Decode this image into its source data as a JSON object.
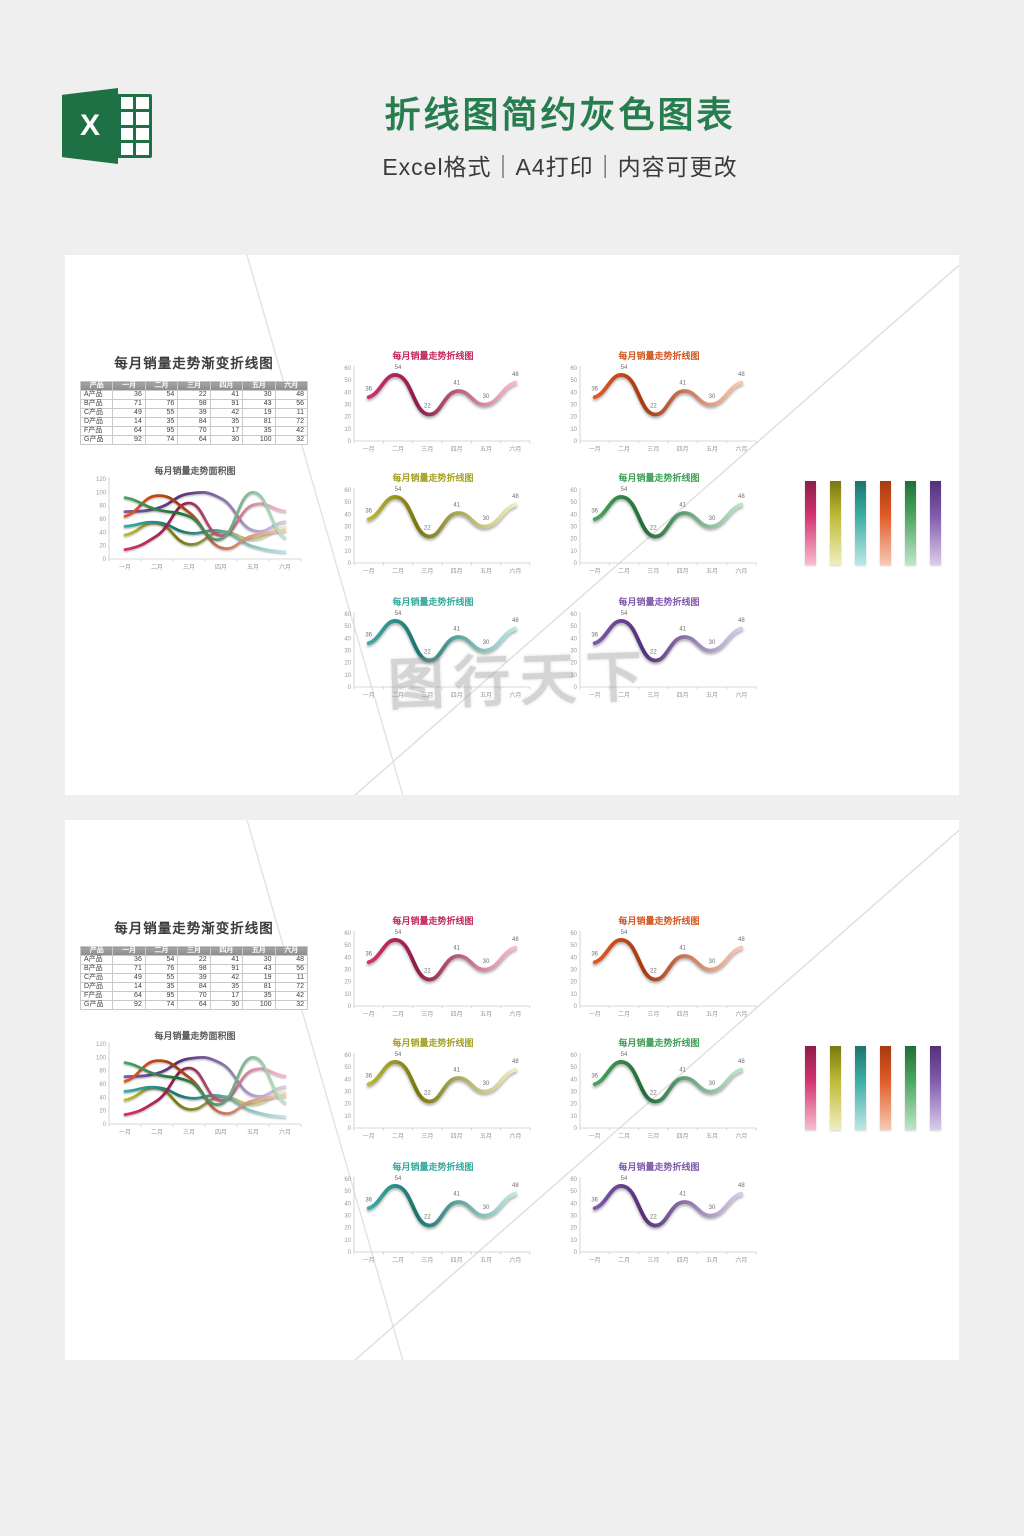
{
  "page": {
    "background": "#efeff0"
  },
  "header": {
    "title": "折线图简约灰色图表",
    "subtitle": "Excel格式｜A4打印｜内容可更改",
    "title_color": "#287d4e",
    "icon": {
      "name": "excel-icon",
      "letter": "X",
      "color": "#1e7145"
    }
  },
  "watermark": {
    "text": "图行天下"
  },
  "palette": {
    "pink": {
      "dark": "#8e1d4a",
      "mid": "#d2326e",
      "light": "#f7bcd1",
      "title": "#c2255c"
    },
    "orange": {
      "dark": "#a63a10",
      "mid": "#e05a26",
      "light": "#f8c9b4",
      "title": "#d0541e"
    },
    "olive": {
      "dark": "#79770f",
      "mid": "#bdb934",
      "light": "#efeec0",
      "title": "#a3a024"
    },
    "green": {
      "dark": "#1f6e38",
      "mid": "#4aa55e",
      "light": "#bfe5c9",
      "title": "#3e9c54"
    },
    "teal": {
      "dark": "#1c746e",
      "mid": "#3aada5",
      "light": "#bce8e5",
      "title": "#35a79c"
    },
    "purple": {
      "dark": "#533179",
      "mid": "#8059ab",
      "light": "#d9cdeb",
      "title": "#7e57a8"
    }
  },
  "sheet": {
    "table_title": "每月销量走势渐变折线图",
    "table": {
      "header": [
        "产品",
        "一月",
        "二月",
        "三月",
        "四月",
        "五月",
        "六月"
      ],
      "rows": [
        [
          "A产品",
          36,
          54,
          22,
          41,
          30,
          48
        ],
        [
          "B产品",
          71,
          76,
          98,
          91,
          43,
          56
        ],
        [
          "C产品",
          49,
          55,
          39,
          42,
          19,
          11
        ],
        [
          "D产品",
          14,
          35,
          84,
          35,
          81,
          72
        ],
        [
          "F产品",
          64,
          95,
          70,
          17,
          35,
          42
        ],
        [
          "G产品",
          92,
          74,
          64,
          30,
          100,
          32
        ]
      ]
    },
    "line_chart_order": [
      "pink",
      "orange",
      "olive",
      "green",
      "teal",
      "purple"
    ],
    "color_bar_order": [
      "pink",
      "olive",
      "teal",
      "orange",
      "green",
      "purple"
    ]
  },
  "chart_data": [
    {
      "type": "line",
      "title": "每月销量走势折线图",
      "categories": [
        "一月",
        "二月",
        "三月",
        "四月",
        "五月",
        "六月"
      ],
      "values": [
        36,
        54,
        22,
        41,
        30,
        48
      ],
      "series_name": "A产品",
      "ylim": [
        0,
        60
      ],
      "yticks": [
        0,
        10,
        20,
        30,
        40,
        50,
        60
      ],
      "data_labels": true,
      "grid": false,
      "legend": "none",
      "color_variants": [
        "pink",
        "orange",
        "olive",
        "green",
        "teal",
        "purple"
      ],
      "instances_per_sheet": 6
    },
    {
      "type": "line",
      "title": "每月销量走势面积图",
      "categories": [
        "一月",
        "二月",
        "三月",
        "四月",
        "五月",
        "六月"
      ],
      "ylim": [
        0,
        120
      ],
      "yticks": [
        0,
        20,
        40,
        60,
        80,
        100,
        120
      ],
      "data_labels": false,
      "grid": false,
      "legend": "none",
      "series": [
        {
          "name": "A产品",
          "color": "olive",
          "values": [
            36,
            54,
            22,
            41,
            30,
            48
          ]
        },
        {
          "name": "B产品",
          "color": "purple",
          "values": [
            71,
            76,
            98,
            91,
            43,
            56
          ]
        },
        {
          "name": "C产品",
          "color": "teal",
          "values": [
            49,
            55,
            39,
            42,
            19,
            11
          ]
        },
        {
          "name": "D产品",
          "color": "pink",
          "values": [
            14,
            35,
            84,
            35,
            81,
            72
          ]
        },
        {
          "name": "F产品",
          "color": "orange",
          "values": [
            64,
            95,
            70,
            17,
            35,
            42
          ]
        },
        {
          "name": "G产品",
          "color": "green",
          "values": [
            92,
            74,
            64,
            30,
            100,
            32
          ]
        }
      ]
    }
  ]
}
